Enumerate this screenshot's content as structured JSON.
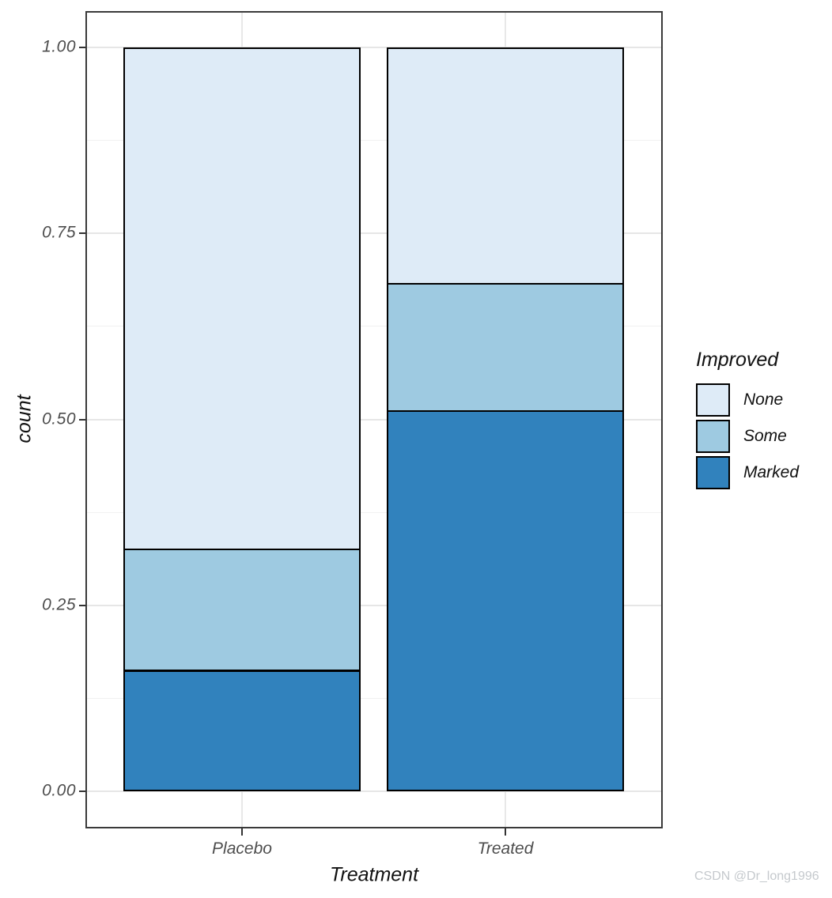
{
  "watermark": "CSDN @Dr_long1996",
  "colors": {
    "panel_border": "#3a3a3a",
    "grid_major": "#e6e6e6",
    "grid_minor": "#f1f1f1",
    "bar_outline": "#000000",
    "tick_label": "#4d4d4d",
    "axis_title": "#111111",
    "fill_none": "#deebf7",
    "fill_some": "#9ecae1",
    "fill_marked": "#3182bd"
  },
  "chart_data": {
    "type": "bar",
    "stacked": true,
    "position": "fill",
    "title": "",
    "xlabel": "Treatment",
    "ylabel": "count",
    "categories": [
      "Placebo",
      "Treated"
    ],
    "series": [
      {
        "name": "None",
        "color": "#deebf7",
        "values": [
          0.674,
          0.317
        ]
      },
      {
        "name": "Some",
        "color": "#9ecae1",
        "values": [
          0.163,
          0.171
        ]
      },
      {
        "name": "Marked",
        "color": "#3182bd",
        "values": [
          0.163,
          0.512
        ]
      }
    ],
    "ylim": [
      0,
      1
    ],
    "yticks": [
      1.0,
      0.75,
      0.5,
      0.25,
      0.0
    ],
    "ytick_labels": [
      "1.00",
      "0.75",
      "0.50",
      "0.25",
      "0.00"
    ],
    "yminor": [
      0.875,
      0.625,
      0.375,
      0.125
    ],
    "grid": true,
    "legend": {
      "title": "Improved",
      "position": "right",
      "labels": [
        "None",
        "Some",
        "Marked"
      ]
    }
  }
}
